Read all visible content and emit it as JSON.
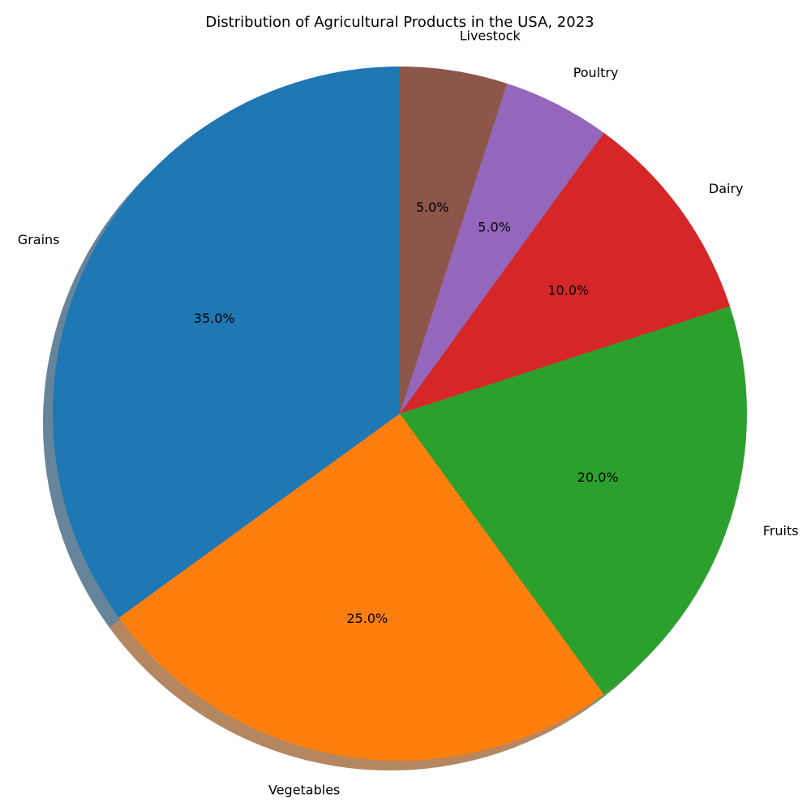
{
  "chart_data": {
    "type": "pie",
    "title": "Distribution of Agricultural Products in the USA, 2023",
    "categories": [
      "Grains",
      "Vegetables",
      "Fruits",
      "Dairy",
      "Poultry",
      "Livestock"
    ],
    "values": [
      35,
      25,
      20,
      10,
      5,
      5
    ],
    "percent_labels": [
      "35.0%",
      "25.0%",
      "20.0%",
      "10.0%",
      "5.0%",
      "5.0%"
    ],
    "colors": [
      "#1f77b4",
      "#ff7f0e",
      "#2ca02c",
      "#d62728",
      "#9467bd",
      "#8c564b"
    ],
    "start_angle_deg": 90,
    "direction": "counterclockwise",
    "shadow": true
  }
}
